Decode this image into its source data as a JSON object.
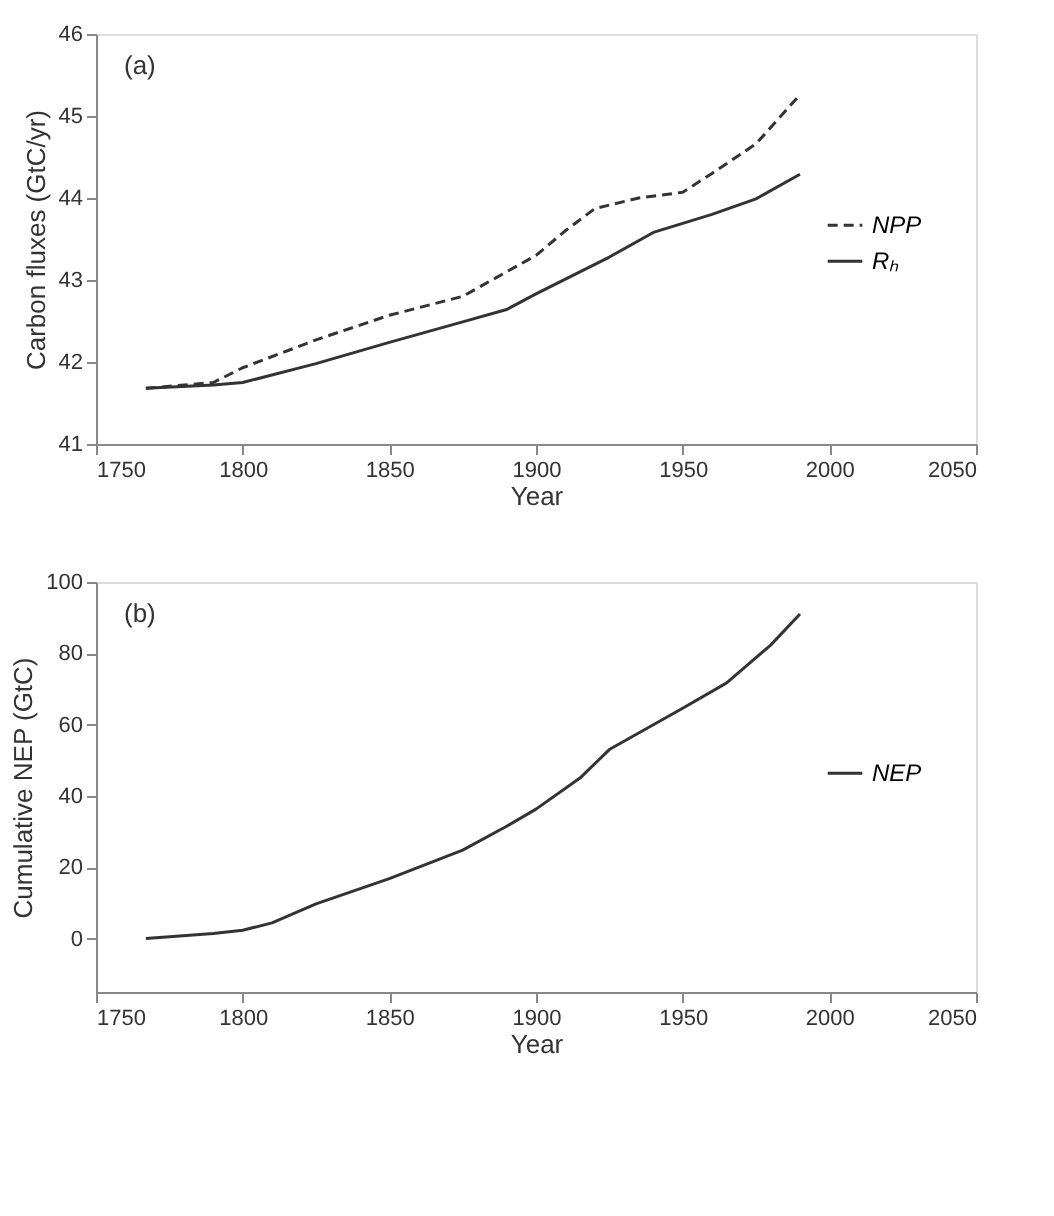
{
  "chart_data": [
    {
      "type": "line",
      "xlabel": "Year",
      "ylabel": "Carbon fluxes (GtC/yr)",
      "annotations": [
        "(a)"
      ],
      "xlim": [
        1750,
        2050
      ],
      "xticks": [
        1750,
        1800,
        1850,
        1900,
        1950,
        2000,
        2050
      ],
      "ylim": [
        41,
        46
      ],
      "yticks": [
        41,
        42,
        43,
        44,
        45,
        46
      ],
      "grid": false,
      "legend": "right",
      "series": [
        {
          "name": "NPP",
          "color": "#333333",
          "line_style": "dashed",
          "x": [
            1767,
            1790,
            1800,
            1825,
            1850,
            1875,
            1900,
            1910,
            1920,
            1935,
            1950,
            1960,
            1975,
            1990
          ],
          "values": [
            41.68,
            41.75,
            41.93,
            42.27,
            42.57,
            42.8,
            43.3,
            43.6,
            43.87,
            44.0,
            44.07,
            44.3,
            44.66,
            45.26
          ]
        },
        {
          "name": "Rₕ",
          "color": "#333333",
          "line_style": "solid",
          "x": [
            1767,
            1790,
            1800,
            1825,
            1850,
            1875,
            1890,
            1900,
            1925,
            1940,
            1950,
            1960,
            1975,
            1990
          ],
          "values": [
            41.68,
            41.72,
            41.75,
            41.98,
            42.24,
            42.49,
            42.64,
            42.83,
            43.28,
            43.58,
            43.69,
            43.8,
            43.99,
            44.29
          ]
        }
      ]
    },
    {
      "type": "line",
      "xlabel": "Year",
      "ylabel": "Cumulative NEP (GtC)",
      "annotations": [
        "(b)"
      ],
      "xlim": [
        1750,
        2050
      ],
      "xticks": [
        1750,
        1800,
        1850,
        1900,
        1950,
        2000,
        2050
      ],
      "ylim": [
        -15,
        100
      ],
      "yticks": [
        0,
        20,
        40,
        60,
        80,
        100
      ],
      "grid": false,
      "legend": "right",
      "series": [
        {
          "name": "NEP",
          "color": "#333333",
          "line_style": "solid",
          "x": [
            1767,
            1790,
            1800,
            1810,
            1825,
            1850,
            1875,
            1890,
            1900,
            1915,
            1925,
            1950,
            1965,
            1980,
            1990
          ],
          "values": [
            0,
            1.4,
            2.3,
            4.4,
            9.7,
            16.8,
            24.8,
            31.5,
            36.3,
            45,
            53,
            64.6,
            71.7,
            82.3,
            91
          ]
        }
      ]
    }
  ]
}
